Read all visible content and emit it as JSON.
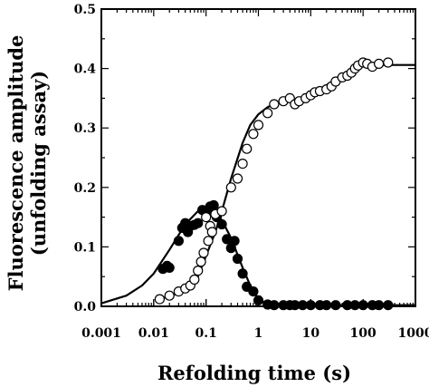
{
  "chart_data": {
    "type": "scatter",
    "title": "",
    "xlabel": "Refolding time (s)",
    "ylabel_lines": [
      "Fluorescence amplitude",
      "(unfolding assay)"
    ],
    "xscale": "log",
    "xlim": [
      0.001,
      1000
    ],
    "ylim": [
      0,
      0.5
    ],
    "x_ticks": [
      0.001,
      0.01,
      0.1,
      1,
      10,
      100,
      1000
    ],
    "x_tick_labels": [
      "0.001",
      "0.01",
      "0.1",
      "1",
      "10",
      "100",
      "1000"
    ],
    "y_ticks": [
      0,
      0.1,
      0.2,
      0.3,
      0.4,
      0.5
    ],
    "y_tick_labels": [
      "0.0",
      "0.1",
      "0.2",
      "0.3",
      "0.4",
      "0.5"
    ],
    "grid": false,
    "legend": "none",
    "series": [
      {
        "marker": "filled-circle",
        "points": [
          [
            0.015,
            0.063
          ],
          [
            0.018,
            0.068
          ],
          [
            0.02,
            0.065
          ],
          [
            0.03,
            0.11
          ],
          [
            0.035,
            0.132
          ],
          [
            0.04,
            0.14
          ],
          [
            0.045,
            0.125
          ],
          [
            0.05,
            0.135
          ],
          [
            0.06,
            0.137
          ],
          [
            0.07,
            0.14
          ],
          [
            0.085,
            0.162
          ],
          [
            0.1,
            0.157
          ],
          [
            0.12,
            0.168
          ],
          [
            0.14,
            0.17
          ],
          [
            0.16,
            0.15
          ],
          [
            0.2,
            0.138
          ],
          [
            0.25,
            0.113
          ],
          [
            0.3,
            0.098
          ],
          [
            0.35,
            0.11
          ],
          [
            0.4,
            0.08
          ],
          [
            0.5,
            0.055
          ],
          [
            0.6,
            0.033
          ],
          [
            0.8,
            0.025
          ],
          [
            1.0,
            0.01
          ],
          [
            1.5,
            0.003
          ],
          [
            2.0,
            0.002
          ],
          [
            3,
            0.002
          ],
          [
            4,
            0.002
          ],
          [
            5,
            0.002
          ],
          [
            7,
            0.002
          ],
          [
            10,
            0.002
          ],
          [
            15,
            0.002
          ],
          [
            20,
            0.002
          ],
          [
            30,
            0.002
          ],
          [
            50,
            0.002
          ],
          [
            70,
            0.002
          ],
          [
            100,
            0.002
          ],
          [
            150,
            0.002
          ],
          [
            200,
            0.002
          ],
          [
            300,
            0.002
          ]
        ]
      },
      {
        "marker": "open-circle",
        "points": [
          [
            0.1,
            0.15
          ],
          [
            0.12,
            0.135
          ],
          [
            0.15,
            0.155
          ],
          [
            0.2,
            0.16
          ],
          [
            0.3,
            0.2
          ],
          [
            0.4,
            0.215
          ],
          [
            0.5,
            0.24
          ],
          [
            0.6,
            0.265
          ],
          [
            0.8,
            0.29
          ],
          [
            1.0,
            0.305
          ],
          [
            1.5,
            0.325
          ],
          [
            2.0,
            0.34
          ],
          [
            3,
            0.345
          ],
          [
            4,
            0.35
          ],
          [
            5,
            0.34
          ],
          [
            6,
            0.345
          ],
          [
            8,
            0.35
          ],
          [
            10,
            0.355
          ],
          [
            12,
            0.36
          ],
          [
            15,
            0.362
          ],
          [
            20,
            0.365
          ],
          [
            25,
            0.37
          ],
          [
            30,
            0.378
          ],
          [
            40,
            0.385
          ],
          [
            50,
            0.388
          ],
          [
            60,
            0.393
          ],
          [
            70,
            0.4
          ],
          [
            80,
            0.405
          ],
          [
            100,
            0.41
          ],
          [
            120,
            0.408
          ],
          [
            150,
            0.403
          ],
          [
            200,
            0.408
          ],
          [
            300,
            0.41
          ],
          [
            0.013,
            0.012
          ],
          [
            0.02,
            0.018
          ],
          [
            0.03,
            0.025
          ],
          [
            0.04,
            0.03
          ],
          [
            0.05,
            0.035
          ],
          [
            0.06,
            0.045
          ],
          [
            0.07,
            0.06
          ],
          [
            0.08,
            0.075
          ],
          [
            0.09,
            0.09
          ],
          [
            0.11,
            0.11
          ],
          [
            0.13,
            0.125
          ]
        ]
      }
    ],
    "fit_curves": [
      {
        "style": "solid",
        "points": [
          [
            0.001,
            0.005
          ],
          [
            0.003,
            0.018
          ],
          [
            0.006,
            0.035
          ],
          [
            0.01,
            0.055
          ],
          [
            0.02,
            0.095
          ],
          [
            0.04,
            0.138
          ],
          [
            0.07,
            0.16
          ],
          [
            0.1,
            0.163
          ],
          [
            0.15,
            0.158
          ],
          [
            0.2,
            0.145
          ],
          [
            0.3,
            0.115
          ],
          [
            0.5,
            0.065
          ],
          [
            0.7,
            0.035
          ],
          [
            1.0,
            0.012
          ],
          [
            1.5,
            0.004
          ],
          [
            2,
            0.002
          ],
          [
            10,
            0.002
          ],
          [
            100,
            0.002
          ],
          [
            1000,
            0.002
          ]
        ]
      },
      {
        "style": "solid",
        "points": [
          [
            0.013,
            0.012
          ],
          [
            0.02,
            0.017
          ],
          [
            0.03,
            0.022
          ],
          [
            0.05,
            0.033
          ],
          [
            0.07,
            0.05
          ],
          [
            0.1,
            0.085
          ],
          [
            0.15,
            0.125
          ],
          [
            0.2,
            0.16
          ],
          [
            0.3,
            0.215
          ],
          [
            0.5,
            0.275
          ],
          [
            0.7,
            0.305
          ],
          [
            1.0,
            0.323
          ],
          [
            1.5,
            0.335
          ],
          [
            2,
            0.34
          ],
          [
            3,
            0.343
          ],
          [
            5,
            0.347
          ],
          [
            10,
            0.355
          ],
          [
            20,
            0.372
          ],
          [
            40,
            0.39
          ],
          [
            70,
            0.402
          ],
          [
            100,
            0.405
          ],
          [
            200,
            0.406
          ],
          [
            1000,
            0.406
          ]
        ]
      }
    ]
  }
}
